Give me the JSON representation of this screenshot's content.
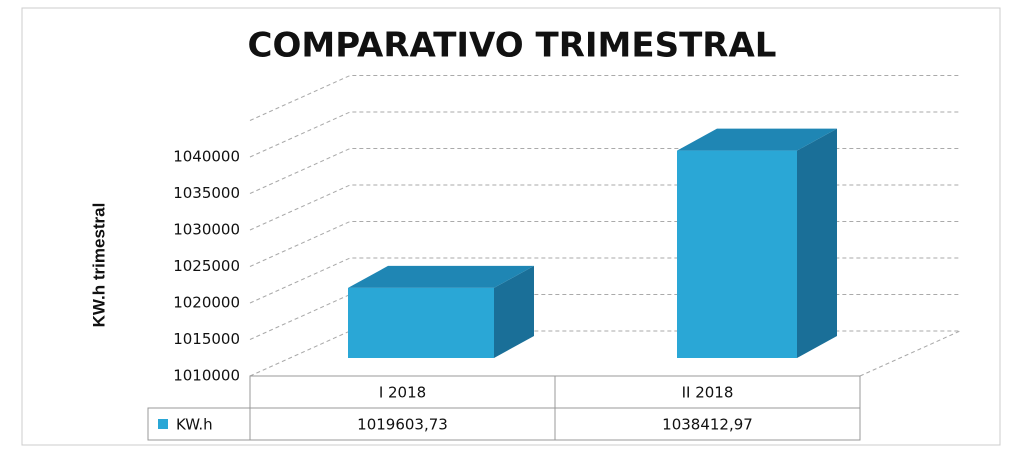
{
  "chart_data": {
    "type": "bar",
    "title": "COMPARATIVO TRIMESTRAL",
    "y_label": "KW.h trimestral",
    "categories": [
      "I 2018",
      "II 2018"
    ],
    "series": [
      {
        "name": "KW.h",
        "color": "#2aa7d6",
        "values": [
          1019603.73,
          1038412.97
        ],
        "value_labels": [
          "1019603,73",
          "1038412,97"
        ]
      }
    ],
    "ylim": [
      1010000,
      1045000
    ],
    "yticks": [
      1010000,
      1015000,
      1020000,
      1025000,
      1030000,
      1035000,
      1040000
    ],
    "grid": true
  }
}
